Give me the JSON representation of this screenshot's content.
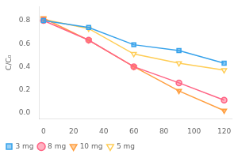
{
  "chart_data": {
    "type": "line",
    "ylabel": "C/C₀",
    "x": [
      0,
      30,
      60,
      90,
      120
    ],
    "series": [
      {
        "name": "3 mg",
        "values": [
          0.8,
          0.74,
          0.59,
          0.54,
          0.43
        ],
        "marker": "square"
      },
      {
        "name": "8 mg",
        "values": [
          0.8,
          0.63,
          0.4,
          0.26,
          0.11
        ],
        "marker": "circle"
      },
      {
        "name": "10 mg",
        "values": [
          0.82,
          0.63,
          0.4,
          0.19,
          0.02
        ],
        "marker": "triangle_down"
      },
      {
        "name": "5 mg",
        "values": [
          0.81,
          0.73,
          0.51,
          0.43,
          0.37
        ],
        "marker": "triangle_down_open"
      }
    ],
    "xlim": [
      -3,
      125
    ],
    "ylim": [
      -0.05,
      0.92
    ],
    "xticks": [
      0,
      20,
      40,
      60,
      80,
      100,
      120
    ],
    "yticks": [
      {
        "value": 0,
        "label": "0.0"
      },
      0.2,
      0.4,
      0.6,
      0.8
    ],
    "grid": false,
    "legend": "lower left"
  }
}
